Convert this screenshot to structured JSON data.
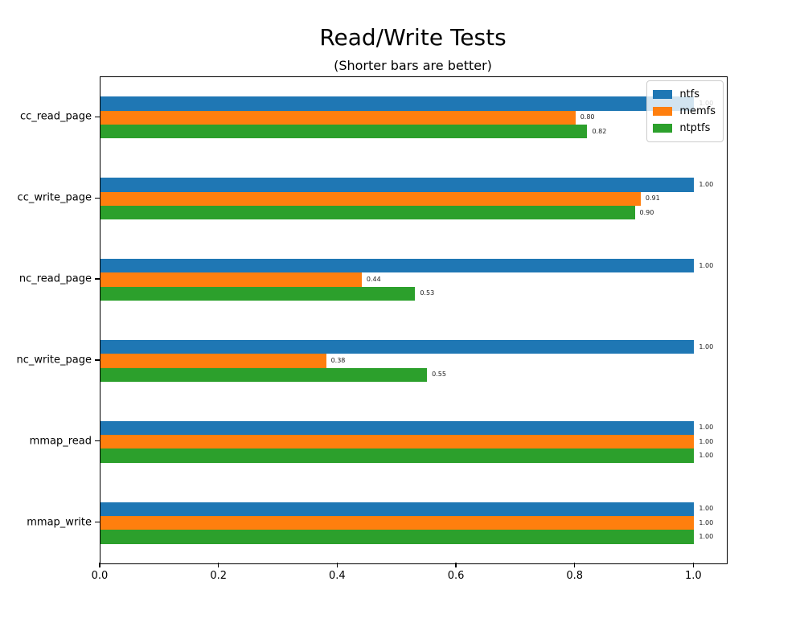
{
  "chart_data": {
    "type": "bar",
    "orientation": "horizontal",
    "title": "Read/Write Tests",
    "subtitle": "(Shorter bars are better)",
    "categories": [
      "cc_read_page",
      "cc_write_page",
      "nc_read_page",
      "nc_write_page",
      "mmap_read",
      "mmap_write"
    ],
    "series": [
      {
        "name": "ntfs",
        "color": "#1f77b4",
        "values": [
          1.0,
          1.0,
          1.0,
          1.0,
          1.0,
          1.0
        ]
      },
      {
        "name": "memfs",
        "color": "#ff7f0e",
        "values": [
          0.8,
          0.91,
          0.44,
          0.38,
          1.0,
          1.0
        ]
      },
      {
        "name": "ntptfs",
        "color": "#2ca02c",
        "values": [
          0.82,
          0.9,
          0.53,
          0.55,
          1.0,
          1.0
        ]
      }
    ],
    "bar_value_labels": [
      [
        "1.00",
        "1.00",
        "1.00",
        "1.00",
        "1.00",
        "1.00"
      ],
      [
        "0.80",
        "0.91",
        "0.44",
        "0.38",
        "1.00",
        "1.00"
      ],
      [
        "0.82",
        "0.90",
        "0.53",
        "0.55",
        "1.00",
        "1.00"
      ]
    ],
    "x_ticks": [
      0.0,
      0.2,
      0.4,
      0.6,
      0.8,
      1.0
    ],
    "x_tick_labels": [
      "0.0",
      "0.2",
      "0.4",
      "0.6",
      "0.8",
      "1.0"
    ],
    "xlim": [
      0,
      1.055
    ],
    "xlabel": "",
    "ylabel": "",
    "grid": false,
    "legend_position": "upper right",
    "background_color": "#ffffff",
    "frame_color": "#000000"
  }
}
